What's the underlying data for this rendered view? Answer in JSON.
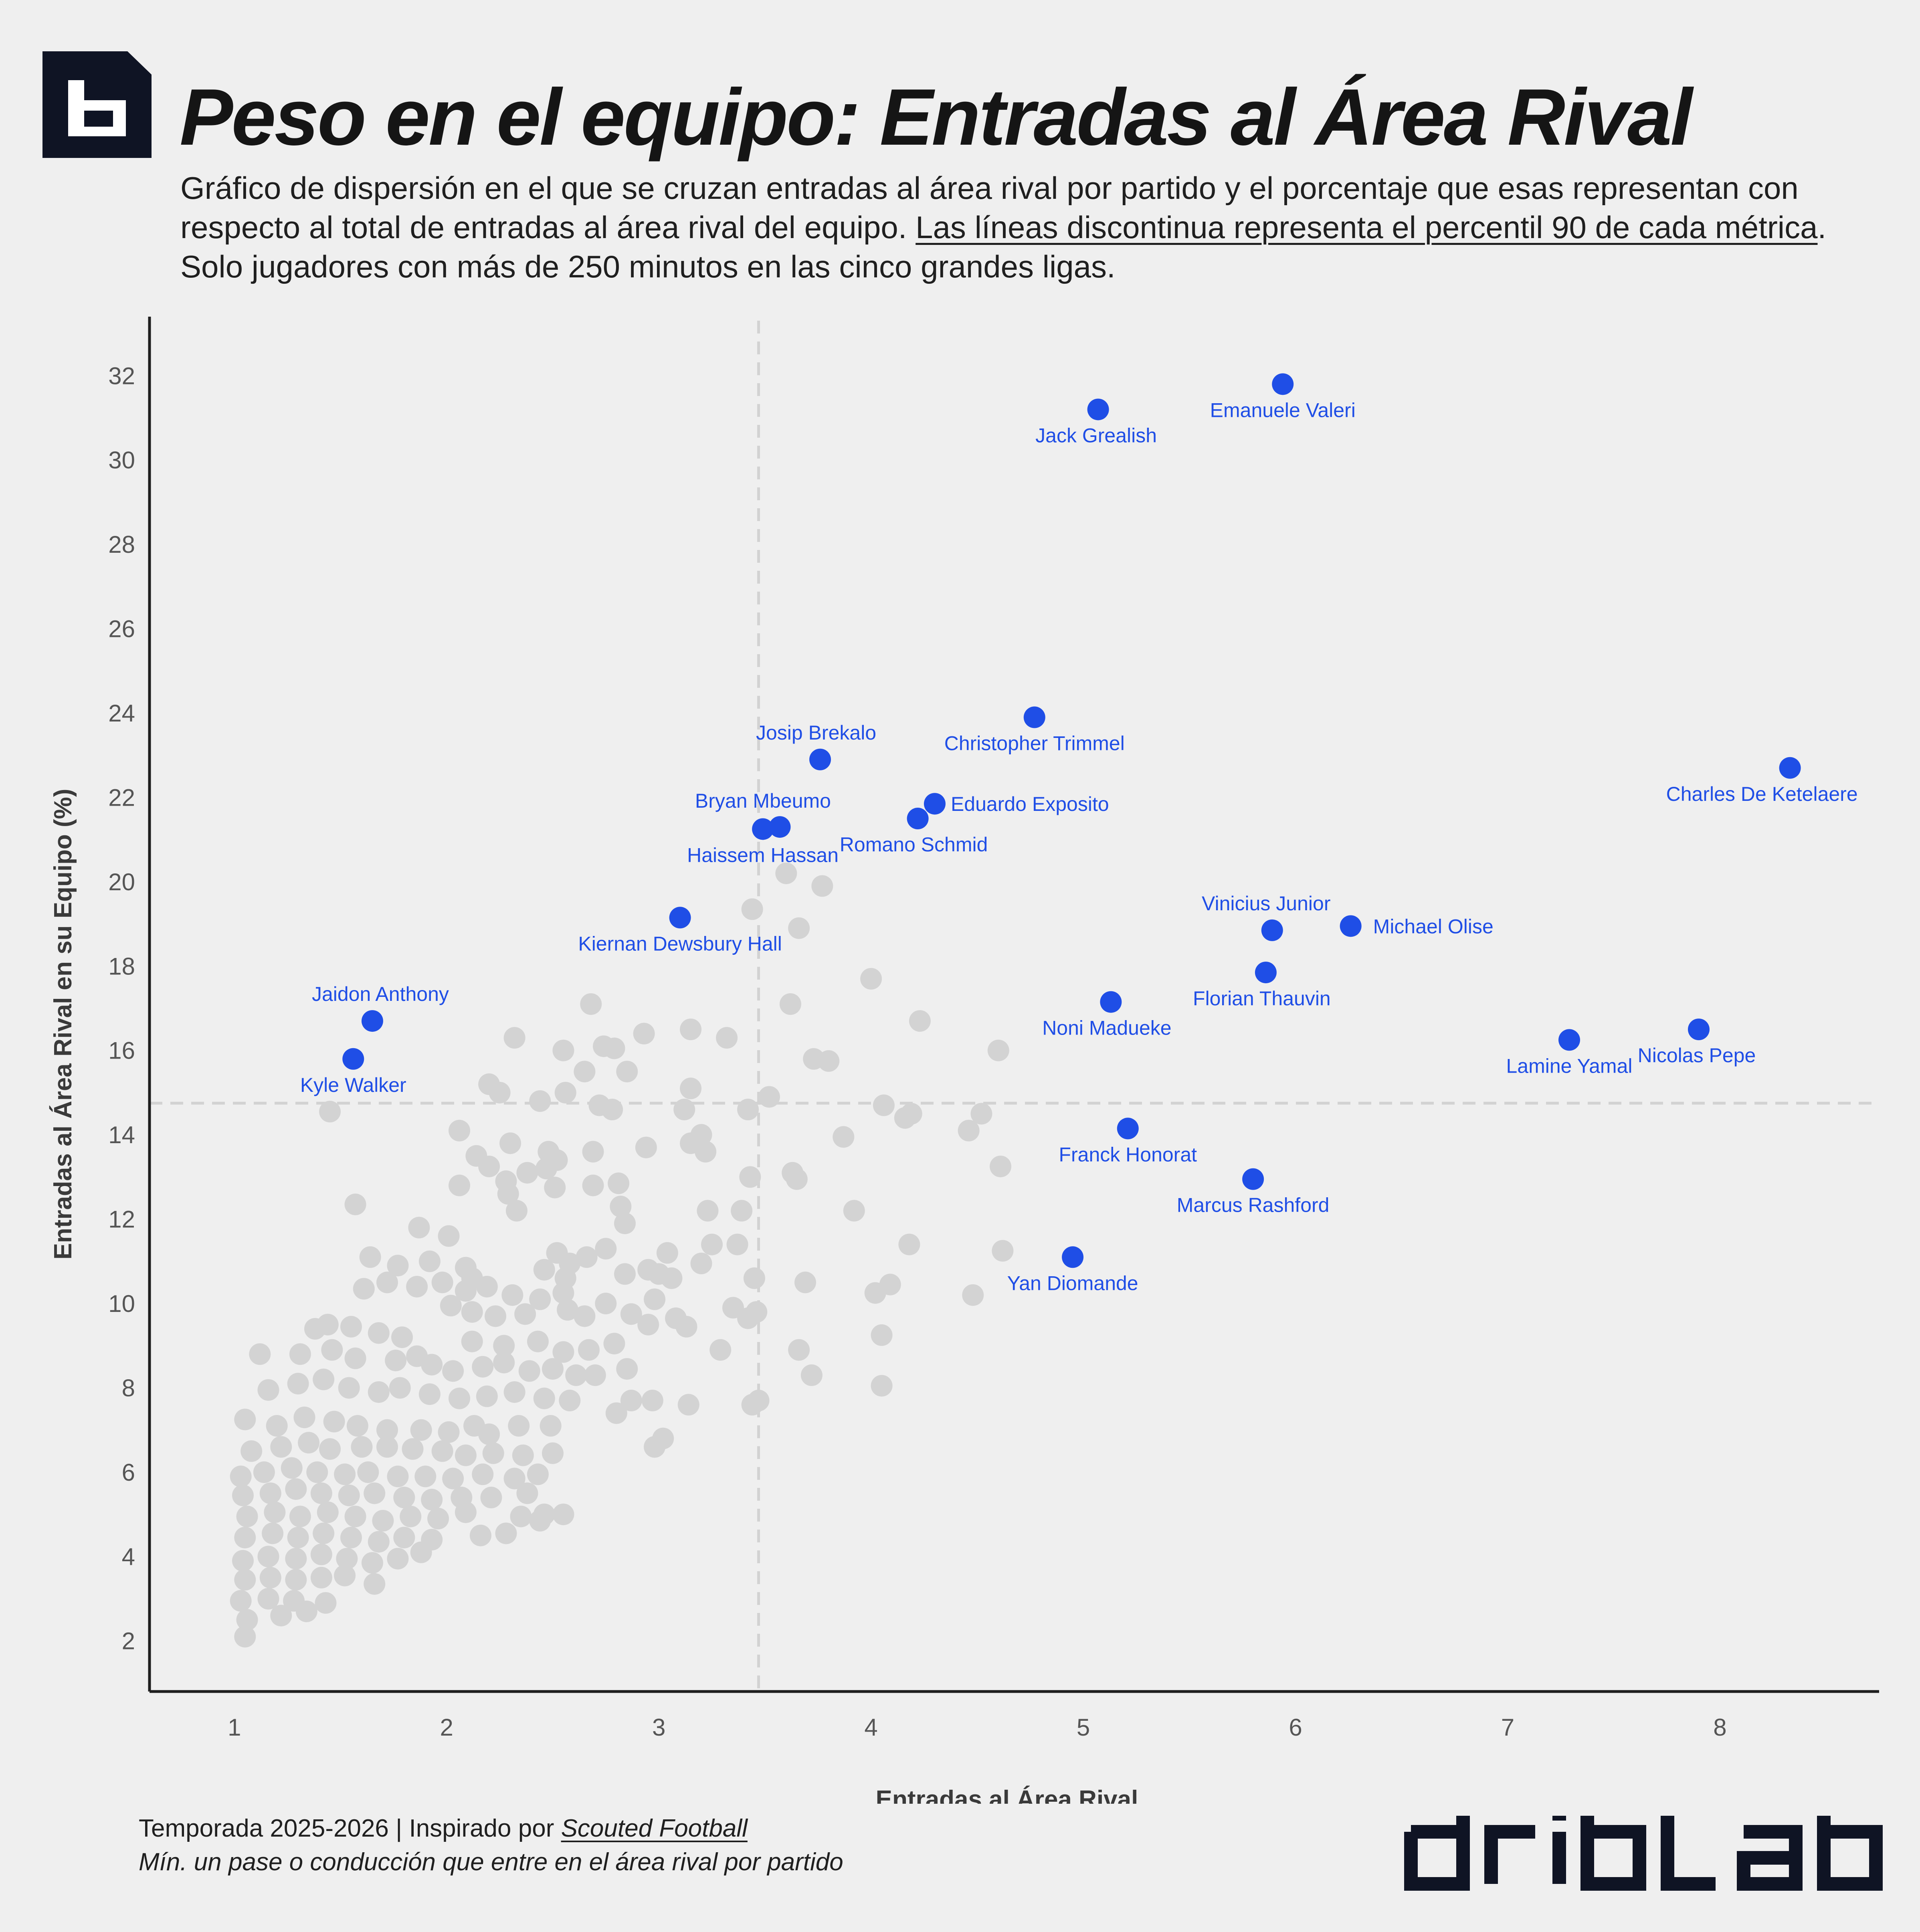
{
  "title": "Peso en el equipo: Entradas al Área Rival",
  "subtitle": {
    "part1": "Gráfico de dispersión en el que se cruzan entradas al área rival por partido y el porcentaje que esas representan con respecto al total de entradas al área rival del equipo. ",
    "underlined": "Las líneas discontinua representa el percentil 90 de cada métrica",
    "part2": ". Solo jugadores con más de 250 minutos en las cinco grandes ligas."
  },
  "footer": {
    "season": "Temporada 2025-2026 | Inspirado por ",
    "source": "Scouted Football",
    "note": "Mín. un pase o conducción que entre en el área rival por partido"
  },
  "brand": "dribLab",
  "colors": {
    "highlight": "#1f4ee6",
    "background_points": "#d3d3d3",
    "background": "#efefef",
    "logo": "#0f1424"
  },
  "chart_data": {
    "type": "scatter",
    "xlabel": "Entradas al Área Rival",
    "ylabel": "Entradas al Área Rival en su Equipo (%)",
    "xlim": [
      0.6,
      8.75
    ],
    "ylim": [
      0.8,
      33.4
    ],
    "xticks": [
      1,
      2,
      3,
      4,
      5,
      6,
      7,
      8
    ],
    "yticks": [
      2,
      4,
      6,
      8,
      10,
      12,
      14,
      16,
      18,
      20,
      22,
      24,
      26,
      28,
      30,
      32
    ],
    "grid": false,
    "reference_lines": {
      "x_p90": 3.47,
      "y_p90": 14.75
    },
    "highlighted": [
      {
        "name": "Emanuele Valeri",
        "x": 5.94,
        "y": 31.8
      },
      {
        "name": "Jack Grealish",
        "x": 5.07,
        "y": 31.2
      },
      {
        "name": "Christopher Trimmel",
        "x": 4.77,
        "y": 23.9
      },
      {
        "name": "Josip Brekalo",
        "x": 3.76,
        "y": 22.9
      },
      {
        "name": "Charles De Ketelaere",
        "x": 8.33,
        "y": 22.7
      },
      {
        "name": "Eduardo Exposito",
        "x": 4.3,
        "y": 21.85
      },
      {
        "name": "Romano Schmid",
        "x": 4.22,
        "y": 21.5
      },
      {
        "name": "Bryan Mbeumo",
        "x": 3.57,
        "y": 21.3
      },
      {
        "name": "Haissem Hassan",
        "x": 3.49,
        "y": 21.25
      },
      {
        "name": "Kiernan Dewsbury Hall",
        "x": 3.1,
        "y": 19.15
      },
      {
        "name": "Michael Olise",
        "x": 6.26,
        "y": 18.95
      },
      {
        "name": "Vinicius Junior",
        "x": 5.89,
        "y": 18.85
      },
      {
        "name": "Florian Thauvin",
        "x": 5.86,
        "y": 17.85
      },
      {
        "name": "Noni Madueke",
        "x": 5.13,
        "y": 17.15
      },
      {
        "name": "Jaidon Anthony",
        "x": 1.65,
        "y": 16.7
      },
      {
        "name": "Nicolas Pepe",
        "x": 7.9,
        "y": 16.5
      },
      {
        "name": "Lamine Yamal",
        "x": 7.29,
        "y": 16.25
      },
      {
        "name": "Kyle Walker",
        "x": 1.56,
        "y": 15.8
      },
      {
        "name": "Franck Honorat",
        "x": 5.21,
        "y": 14.15
      },
      {
        "name": "Marcus Rashford",
        "x": 5.8,
        "y": 12.95
      },
      {
        "name": "Yan Diomande",
        "x": 4.95,
        "y": 11.1
      }
    ],
    "others": [
      [
        3.6,
        20.2
      ],
      [
        3.77,
        19.9
      ],
      [
        3.44,
        19.35
      ],
      [
        3.66,
        18.9
      ],
      [
        4.0,
        17.7
      ],
      [
        2.68,
        17.1
      ],
      [
        3.62,
        17.1
      ],
      [
        4.23,
        16.7
      ],
      [
        2.32,
        16.3
      ],
      [
        2.55,
        16.0
      ],
      [
        2.93,
        16.4
      ],
      [
        3.15,
        16.5
      ],
      [
        3.32,
        16.3
      ],
      [
        4.6,
        16.0
      ],
      [
        3.73,
        15.8
      ],
      [
        3.8,
        15.75
      ],
      [
        2.74,
        16.1
      ],
      [
        2.79,
        16.05
      ],
      [
        2.65,
        15.5
      ],
      [
        2.85,
        15.5
      ],
      [
        2.2,
        15.2
      ],
      [
        2.25,
        15.0
      ],
      [
        2.44,
        14.8
      ],
      [
        2.56,
        15.0
      ],
      [
        2.72,
        14.7
      ],
      [
        2.78,
        14.6
      ],
      [
        3.12,
        14.6
      ],
      [
        3.15,
        15.1
      ],
      [
        3.42,
        14.6
      ],
      [
        3.52,
        14.9
      ],
      [
        4.06,
        14.7
      ],
      [
        4.16,
        14.4
      ],
      [
        4.19,
        14.5
      ],
      [
        4.52,
        14.5
      ],
      [
        4.46,
        14.1
      ],
      [
        1.45,
        14.55
      ],
      [
        2.06,
        14.1
      ],
      [
        2.3,
        13.8
      ],
      [
        2.48,
        13.6
      ],
      [
        2.52,
        13.4
      ],
      [
        2.69,
        13.6
      ],
      [
        2.94,
        13.7
      ],
      [
        3.15,
        13.8
      ],
      [
        3.2,
        14.0
      ],
      [
        3.22,
        13.6
      ],
      [
        3.87,
        13.95
      ],
      [
        2.14,
        13.5
      ],
      [
        2.2,
        13.25
      ],
      [
        2.28,
        12.9
      ],
      [
        2.38,
        13.1
      ],
      [
        2.47,
        13.2
      ],
      [
        2.51,
        12.75
      ],
      [
        2.69,
        12.8
      ],
      [
        2.81,
        12.85
      ],
      [
        3.43,
        13.0
      ],
      [
        3.63,
        13.1
      ],
      [
        3.65,
        12.95
      ],
      [
        4.61,
        13.25
      ],
      [
        2.06,
        12.8
      ],
      [
        2.29,
        12.6
      ],
      [
        2.33,
        12.2
      ],
      [
        2.82,
        12.3
      ],
      [
        2.84,
        11.9
      ],
      [
        3.23,
        12.2
      ],
      [
        3.39,
        12.2
      ],
      [
        3.92,
        12.2
      ],
      [
        1.57,
        12.35
      ],
      [
        1.87,
        11.8
      ],
      [
        2.01,
        11.6
      ],
      [
        2.52,
        11.2
      ],
      [
        2.58,
        10.95
      ],
      [
        2.66,
        11.1
      ],
      [
        2.75,
        11.3
      ],
      [
        3.04,
        11.2
      ],
      [
        3.25,
        11.4
      ],
      [
        3.37,
        11.4
      ],
      [
        4.18,
        11.4
      ],
      [
        4.62,
        11.25
      ],
      [
        3.2,
        10.95
      ],
      [
        1.64,
        11.1
      ],
      [
        1.77,
        10.9
      ],
      [
        1.92,
        11.0
      ],
      [
        2.09,
        10.85
      ],
      [
        2.12,
        10.6
      ],
      [
        2.46,
        10.8
      ],
      [
        2.56,
        10.6
      ],
      [
        2.84,
        10.7
      ],
      [
        2.95,
        10.8
      ],
      [
        3.0,
        10.7
      ],
      [
        3.06,
        10.6
      ],
      [
        3.45,
        10.6
      ],
      [
        3.69,
        10.5
      ],
      [
        4.09,
        10.45
      ],
      [
        4.02,
        10.25
      ],
      [
        4.48,
        10.2
      ],
      [
        1.61,
        10.35
      ],
      [
        1.72,
        10.5
      ],
      [
        1.86,
        10.4
      ],
      [
        1.98,
        10.5
      ],
      [
        2.09,
        10.3
      ],
      [
        2.19,
        10.4
      ],
      [
        2.31,
        10.2
      ],
      [
        2.44,
        10.1
      ],
      [
        2.55,
        10.25
      ],
      [
        2.75,
        10.0
      ],
      [
        2.98,
        10.1
      ],
      [
        3.35,
        9.9
      ],
      [
        3.46,
        9.8
      ],
      [
        3.42,
        9.65
      ],
      [
        2.02,
        9.95
      ],
      [
        2.12,
        9.8
      ],
      [
        2.23,
        9.7
      ],
      [
        2.37,
        9.75
      ],
      [
        2.57,
        9.85
      ],
      [
        2.65,
        9.7
      ],
      [
        2.87,
        9.75
      ],
      [
        2.95,
        9.5
      ],
      [
        3.08,
        9.65
      ],
      [
        3.13,
        9.45
      ],
      [
        4.05,
        9.25
      ],
      [
        1.38,
        9.4
      ],
      [
        1.44,
        9.5
      ],
      [
        1.55,
        9.45
      ],
      [
        1.68,
        9.3
      ],
      [
        1.79,
        9.2
      ],
      [
        2.12,
        9.1
      ],
      [
        2.27,
        9.0
      ],
      [
        2.43,
        9.1
      ],
      [
        2.55,
        8.85
      ],
      [
        2.67,
        8.9
      ],
      [
        2.79,
        9.05
      ],
      [
        3.29,
        8.9
      ],
      [
        3.66,
        8.9
      ],
      [
        1.12,
        8.8
      ],
      [
        1.31,
        8.8
      ],
      [
        1.46,
        8.9
      ],
      [
        1.57,
        8.7
      ],
      [
        1.76,
        8.65
      ],
      [
        1.86,
        8.75
      ],
      [
        1.93,
        8.55
      ],
      [
        2.03,
        8.4
      ],
      [
        2.17,
        8.5
      ],
      [
        2.27,
        8.6
      ],
      [
        2.39,
        8.4
      ],
      [
        2.5,
        8.45
      ],
      [
        2.61,
        8.3
      ],
      [
        2.7,
        8.3
      ],
      [
        2.85,
        8.45
      ],
      [
        3.72,
        8.3
      ],
      [
        4.05,
        8.05
      ],
      [
        1.16,
        7.95
      ],
      [
        1.3,
        8.1
      ],
      [
        1.42,
        8.2
      ],
      [
        1.54,
        8.0
      ],
      [
        1.68,
        7.9
      ],
      [
        1.78,
        8.0
      ],
      [
        1.92,
        7.85
      ],
      [
        2.06,
        7.75
      ],
      [
        2.19,
        7.8
      ],
      [
        2.32,
        7.9
      ],
      [
        2.46,
        7.75
      ],
      [
        2.58,
        7.7
      ],
      [
        2.87,
        7.7
      ],
      [
        2.97,
        7.7
      ],
      [
        3.14,
        7.6
      ],
      [
        3.47,
        7.7
      ],
      [
        3.44,
        7.6
      ],
      [
        1.05,
        7.25
      ],
      [
        1.2,
        7.1
      ],
      [
        1.33,
        7.3
      ],
      [
        1.47,
        7.2
      ],
      [
        1.58,
        7.1
      ],
      [
        1.72,
        7.0
      ],
      [
        1.88,
        7.0
      ],
      [
        2.01,
        6.95
      ],
      [
        2.13,
        7.1
      ],
      [
        2.2,
        6.9
      ],
      [
        2.34,
        7.1
      ],
      [
        2.49,
        7.1
      ],
      [
        2.8,
        7.4
      ],
      [
        1.08,
        6.5
      ],
      [
        1.22,
        6.6
      ],
      [
        1.35,
        6.7
      ],
      [
        1.45,
        6.55
      ],
      [
        1.6,
        6.6
      ],
      [
        1.72,
        6.6
      ],
      [
        1.84,
        6.55
      ],
      [
        1.98,
        6.5
      ],
      [
        2.09,
        6.4
      ],
      [
        2.22,
        6.45
      ],
      [
        2.36,
        6.4
      ],
      [
        2.5,
        6.45
      ],
      [
        2.98,
        6.6
      ],
      [
        3.02,
        6.8
      ],
      [
        1.03,
        5.9
      ],
      [
        1.14,
        6.0
      ],
      [
        1.27,
        6.1
      ],
      [
        1.39,
        6.0
      ],
      [
        1.52,
        5.95
      ],
      [
        1.63,
        6.0
      ],
      [
        1.77,
        5.9
      ],
      [
        1.9,
        5.9
      ],
      [
        2.03,
        5.85
      ],
      [
        2.17,
        5.95
      ],
      [
        2.32,
        5.85
      ],
      [
        2.43,
        5.95
      ],
      [
        1.04,
        5.45
      ],
      [
        1.17,
        5.5
      ],
      [
        1.29,
        5.6
      ],
      [
        1.41,
        5.5
      ],
      [
        1.54,
        5.45
      ],
      [
        1.66,
        5.5
      ],
      [
        1.8,
        5.4
      ],
      [
        1.93,
        5.35
      ],
      [
        2.07,
        5.4
      ],
      [
        2.21,
        5.4
      ],
      [
        2.38,
        5.5
      ],
      [
        1.06,
        4.95
      ],
      [
        1.19,
        5.05
      ],
      [
        1.31,
        4.95
      ],
      [
        1.44,
        5.05
      ],
      [
        1.57,
        4.95
      ],
      [
        1.7,
        4.85
      ],
      [
        1.83,
        4.95
      ],
      [
        1.96,
        4.9
      ],
      [
        2.09,
        5.05
      ],
      [
        2.35,
        4.95
      ],
      [
        2.46,
        5.0
      ],
      [
        2.55,
        5.0
      ],
      [
        1.05,
        4.45
      ],
      [
        1.18,
        4.55
      ],
      [
        1.3,
        4.45
      ],
      [
        1.42,
        4.55
      ],
      [
        1.55,
        4.45
      ],
      [
        1.68,
        4.35
      ],
      [
        1.8,
        4.45
      ],
      [
        1.93,
        4.4
      ],
      [
        2.16,
        4.5
      ],
      [
        2.28,
        4.55
      ],
      [
        2.44,
        4.85
      ],
      [
        1.04,
        3.9
      ],
      [
        1.16,
        4.0
      ],
      [
        1.29,
        3.95
      ],
      [
        1.41,
        4.05
      ],
      [
        1.53,
        3.95
      ],
      [
        1.65,
        3.85
      ],
      [
        1.77,
        3.95
      ],
      [
        1.88,
        4.1
      ],
      [
        1.05,
        3.45
      ],
      [
        1.17,
        3.5
      ],
      [
        1.29,
        3.45
      ],
      [
        1.41,
        3.5
      ],
      [
        1.52,
        3.55
      ],
      [
        1.66,
        3.35
      ],
      [
        1.03,
        2.95
      ],
      [
        1.16,
        3.0
      ],
      [
        1.28,
        2.95
      ],
      [
        1.43,
        2.9
      ],
      [
        1.06,
        2.5
      ],
      [
        1.22,
        2.6
      ],
      [
        1.34,
        2.7
      ],
      [
        1.05,
        2.1
      ]
    ]
  }
}
